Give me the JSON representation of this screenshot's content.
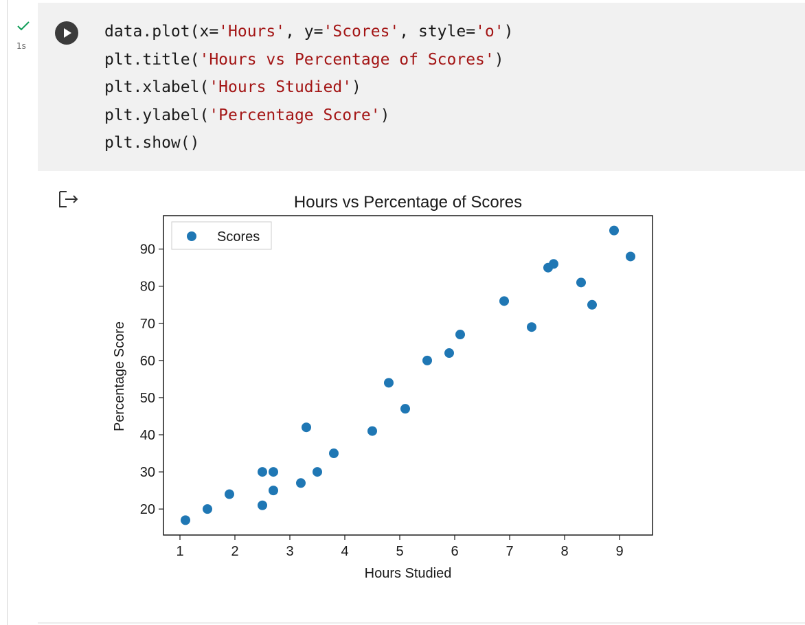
{
  "cell": {
    "exec_time": "1s",
    "status_icon": "check-icon",
    "run_icon": "play-icon",
    "output_icon": "output-arrow-icon",
    "code_lines": [
      [
        {
          "t": "data.plot(x=",
          "s": false
        },
        {
          "t": "'Hours'",
          "s": true
        },
        {
          "t": ", y=",
          "s": false
        },
        {
          "t": "'Scores'",
          "s": true
        },
        {
          "t": ", style=",
          "s": false
        },
        {
          "t": "'o'",
          "s": true
        },
        {
          "t": ")",
          "s": false
        }
      ],
      [
        {
          "t": "plt.title(",
          "s": false
        },
        {
          "t": "'Hours vs Percentage of Scores'",
          "s": true
        },
        {
          "t": ")",
          "s": false
        }
      ],
      [
        {
          "t": "plt.xlabel(",
          "s": false
        },
        {
          "t": "'Hours Studied'",
          "s": true
        },
        {
          "t": ")",
          "s": false
        }
      ],
      [
        {
          "t": "plt.ylabel(",
          "s": false
        },
        {
          "t": "'Percentage Score'",
          "s": true
        },
        {
          "t": ")",
          "s": false
        }
      ],
      [
        {
          "t": "plt.show()",
          "s": false
        }
      ]
    ]
  },
  "colors": {
    "marker": "#1f77b4",
    "string": "#a31515",
    "check": "#0f9d58"
  },
  "chart_data": {
    "type": "scatter",
    "title": "Hours vs Percentage of Scores",
    "xlabel": "Hours Studied",
    "ylabel": "Percentage Score",
    "xlim": [
      0.7,
      9.6
    ],
    "ylim": [
      13,
      99
    ],
    "xticks": [
      1,
      2,
      3,
      4,
      5,
      6,
      7,
      8,
      9
    ],
    "yticks": [
      20,
      30,
      40,
      50,
      60,
      70,
      80,
      90
    ],
    "legend": {
      "placement": "top-left",
      "entries": [
        "Scores"
      ]
    },
    "grid": false,
    "series": [
      {
        "name": "Scores",
        "x": [
          1.1,
          1.5,
          1.9,
          2.5,
          2.5,
          2.7,
          2.7,
          3.2,
          3.3,
          3.5,
          3.8,
          4.5,
          4.8,
          5.1,
          5.5,
          5.9,
          6.1,
          6.9,
          7.4,
          7.7,
          7.8,
          8.3,
          8.5,
          8.9,
          9.2
        ],
        "y": [
          17,
          20,
          24,
          21,
          30,
          30,
          25,
          27,
          42,
          30,
          35,
          41,
          54,
          47,
          60,
          62,
          67,
          76,
          69,
          85,
          86,
          81,
          75,
          95,
          88
        ]
      }
    ]
  }
}
